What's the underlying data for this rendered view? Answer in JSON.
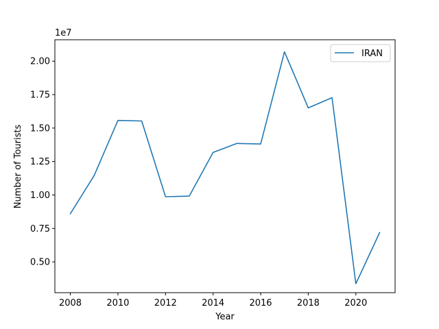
{
  "chart_data": {
    "type": "line",
    "xlabel": "Year",
    "ylabel": "Number of Tourists",
    "offset_text": "1e7",
    "x": [
      2008,
      2009,
      2010,
      2011,
      2012,
      2013,
      2014,
      2015,
      2016,
      2017,
      2018,
      2019,
      2020,
      2021
    ],
    "series": [
      {
        "name": "IRAN",
        "color": "#1f77b4",
        "values": [
          8600000,
          11450000,
          15570000,
          15530000,
          9870000,
          9920000,
          13180000,
          13850000,
          13810000,
          20700000,
          16510000,
          17270000,
          3370000,
          7190000
        ]
      }
    ],
    "xlim": [
      2007.35,
      2021.65
    ],
    "ylim": [
      2700000,
      21600000
    ],
    "xticks": [
      2008,
      2010,
      2012,
      2014,
      2016,
      2018,
      2020
    ],
    "xtick_labels": [
      "2008",
      "2010",
      "2012",
      "2014",
      "2016",
      "2018",
      "2020"
    ],
    "yticks": [
      5000000,
      7500000,
      10000000,
      12500000,
      15000000,
      17500000,
      20000000
    ],
    "ytick_labels": [
      "0.50",
      "0.75",
      "1.00",
      "1.25",
      "1.50",
      "1.75",
      "2.00"
    ],
    "legend_position": "upper right",
    "grid": false
  }
}
